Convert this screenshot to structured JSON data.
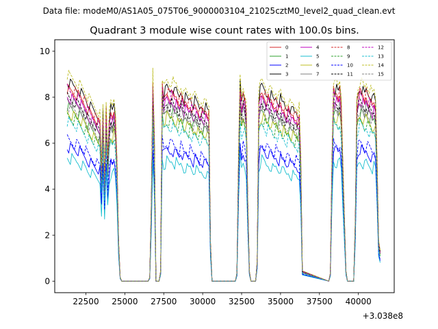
{
  "chart_data": {
    "type": "line",
    "suptitle": "Data file: modeM0/AS1A05_075T06_9000003104_21025cztM0_level2_quad_clean.evt",
    "title": "Quadrant 3 module wise count rates with 100.0s bins.",
    "xlabel": "",
    "ylabel": "",
    "x_offset_label": "+3.038e8",
    "xlim": [
      20500,
      42300
    ],
    "ylim": [
      -0.5,
      10.5
    ],
    "x_ticks": [
      22500,
      25000,
      27500,
      30000,
      32500,
      35000,
      37500,
      40000
    ],
    "x_tick_labels": [
      "22500",
      "25000",
      "27500",
      "30000",
      "32500",
      "35000",
      "37500",
      "40000"
    ],
    "y_ticks": [
      0,
      2,
      4,
      6,
      8,
      10
    ],
    "y_tick_labels": [
      "0",
      "2",
      "4",
      "6",
      "8",
      "10"
    ],
    "grid": false,
    "legend_position": "upper-right",
    "legend_columns": 4,
    "bin_seconds": 100,
    "x": [
      21300,
      21400,
      21500,
      21600,
      21700,
      21800,
      21900,
      22000,
      22100,
      22200,
      22300,
      22400,
      22500,
      22600,
      22700,
      22800,
      22900,
      23000,
      23100,
      23200,
      23300,
      23400,
      23500,
      23600,
      23700,
      23800,
      23900,
      24000,
      24100,
      24200,
      24300,
      24400,
      24500,
      24600,
      24700,
      24800,
      24900,
      26500,
      26600,
      26700,
      26800,
      26900,
      27000,
      27100,
      27200,
      27300,
      27400,
      27500,
      27600,
      27700,
      27800,
      27900,
      28000,
      28100,
      28200,
      28300,
      28400,
      28500,
      28600,
      28700,
      28800,
      28900,
      29000,
      29100,
      29200,
      29300,
      29400,
      29500,
      29600,
      29700,
      29800,
      29900,
      30000,
      30100,
      30200,
      30300,
      30400,
      30500,
      30600,
      32100,
      32200,
      32300,
      32400,
      32500,
      32600,
      32700,
      32800,
      32900,
      33000,
      33100,
      33400,
      33500,
      33600,
      33700,
      33800,
      33900,
      34000,
      34100,
      34200,
      34300,
      34400,
      34500,
      34600,
      34700,
      34800,
      34900,
      35000,
      35100,
      35200,
      35300,
      35400,
      35500,
      35600,
      35700,
      35800,
      35900,
      36000,
      36100,
      36200,
      36300,
      36400,
      38100,
      38200,
      38300,
      38400,
      38500,
      38600,
      38700,
      38800,
      38900,
      39000,
      39200,
      39300,
      39700,
      39800,
      39900,
      40000,
      40100,
      40200,
      40300,
      40400,
      40500,
      40600,
      40700,
      40800,
      40900,
      41000,
      41100,
      41200,
      41300,
      41400
    ],
    "shape": [
      1.0,
      0.99,
      0.98,
      0.98,
      0.97,
      0.97,
      0.96,
      0.96,
      0.95,
      0.94,
      0.93,
      0.92,
      0.91,
      0.89,
      0.88,
      0.87,
      0.86,
      0.85,
      0.84,
      0.83,
      0.82,
      0.81,
      0.55,
      0.85,
      0.5,
      0.88,
      0.62,
      0.8,
      0.86,
      0.84,
      0.88,
      0.82,
      0.6,
      0.2,
      0.02,
      0.0,
      0.0,
      0.0,
      0.02,
      0.4,
      1.0,
      0.7,
      0.0,
      0.0,
      0.0,
      0.05,
      1.0,
      0.93,
      0.95,
      0.97,
      0.96,
      0.95,
      0.97,
      0.96,
      0.94,
      0.95,
      0.93,
      0.92,
      0.95,
      0.93,
      0.9,
      0.92,
      0.91,
      0.9,
      0.92,
      0.9,
      0.88,
      0.9,
      0.89,
      0.88,
      0.86,
      0.88,
      0.87,
      0.86,
      0.87,
      0.85,
      0.85,
      0.2,
      0.0,
      0.0,
      0.04,
      0.6,
      1.0,
      0.9,
      0.95,
      0.92,
      0.85,
      0.4,
      0.05,
      0.0,
      0.0,
      0.1,
      0.9,
      0.95,
      0.97,
      0.96,
      0.95,
      0.93,
      0.94,
      0.92,
      0.93,
      0.91,
      0.9,
      0.92,
      0.9,
      0.89,
      0.91,
      0.88,
      0.89,
      0.87,
      0.86,
      0.88,
      0.86,
      0.85,
      0.86,
      0.84,
      0.85,
      0.83,
      0.84,
      0.6,
      0.05,
      0.0,
      0.04,
      0.6,
      0.98,
      0.95,
      0.96,
      0.94,
      0.97,
      0.9,
      0.6,
      0.05,
      0.0,
      0.0,
      0.3,
      0.9,
      0.95,
      0.97,
      0.96,
      0.95,
      0.93,
      0.96,
      0.94,
      0.93,
      0.92,
      0.9,
      0.92,
      0.89,
      0.6,
      0.2,
      0.15
    ],
    "series": [
      {
        "name": "0",
        "color": "#d62728",
        "dash": "solid",
        "level": 8.4
      },
      {
        "name": "1",
        "color": "#2ca02c",
        "dash": "solid",
        "level": 7.6
      },
      {
        "name": "2",
        "color": "#0000ff",
        "dash": "solid",
        "level": 5.9
      },
      {
        "name": "3",
        "color": "#000000",
        "dash": "solid",
        "level": 8.7
      },
      {
        "name": "4",
        "color": "#bf00bf",
        "dash": "solid",
        "level": 8.1
      },
      {
        "name": "5",
        "color": "#17becf",
        "dash": "solid",
        "level": 5.4
      },
      {
        "name": "6",
        "color": "#bcbd22",
        "dash": "solid",
        "level": 7.4
      },
      {
        "name": "7",
        "color": "#7f7f7f",
        "dash": "solid",
        "level": 7.9
      },
      {
        "name": "8",
        "color": "#d62728",
        "dash": "dashed",
        "level": 8.5
      },
      {
        "name": "9",
        "color": "#2ca02c",
        "dash": "dashed",
        "level": 7.2
      },
      {
        "name": "10",
        "color": "#0000ff",
        "dash": "dashed",
        "level": 6.2
      },
      {
        "name": "11",
        "color": "#000000",
        "dash": "dashed",
        "level": 8.0
      },
      {
        "name": "12",
        "color": "#bf00bf",
        "dash": "dashed",
        "level": 8.3
      },
      {
        "name": "13",
        "color": "#17becf",
        "dash": "dashed",
        "level": 7.0
      },
      {
        "name": "14",
        "color": "#bcbd22",
        "dash": "dashed",
        "level": 9.0
      },
      {
        "name": "15",
        "color": "#7f7f7f",
        "dash": "dashed",
        "level": 7.7
      }
    ]
  }
}
